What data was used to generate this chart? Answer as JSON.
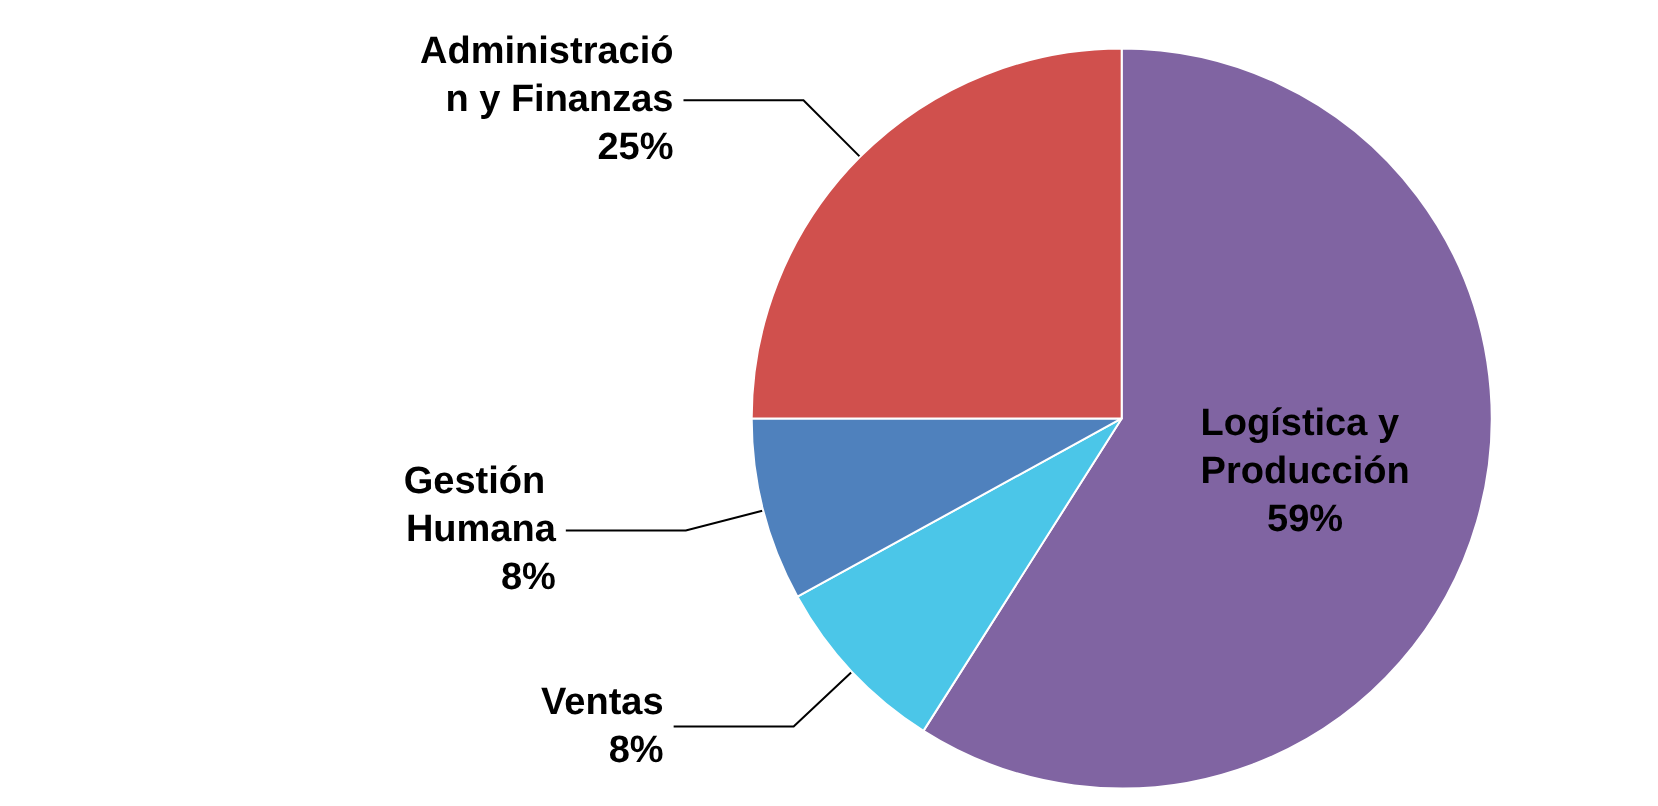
{
  "chart_data": {
    "type": "pie",
    "categories": [
      "Logística y Producción",
      "Ventas",
      "Gestión Humana",
      "Administración y Finanzas"
    ],
    "values": [
      59,
      8,
      8,
      25
    ],
    "value_labels": [
      "59%",
      "8%",
      "8%",
      "25%"
    ],
    "colors": [
      "#8064a2",
      "#4bc6e8",
      "#4f81bd",
      "#d0504d"
    ]
  }
}
